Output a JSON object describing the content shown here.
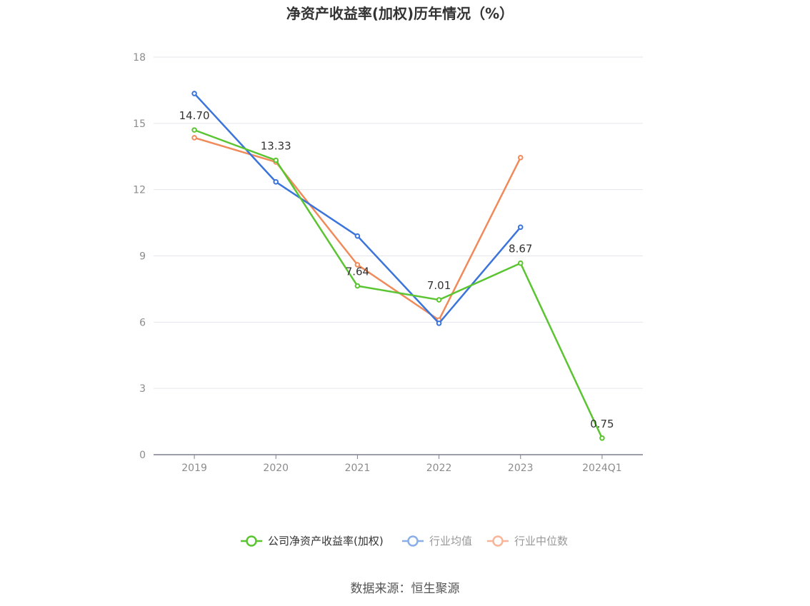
{
  "chart_data": {
    "type": "line",
    "title": "净资产收益率(加权)历年情况（%）",
    "categories": [
      "2019",
      "2020",
      "2021",
      "2022",
      "2023",
      "2024Q1"
    ],
    "ylim": [
      0,
      18
    ],
    "yticks": [
      0,
      3,
      6,
      9,
      12,
      15,
      18
    ],
    "grid": true,
    "legend_position": "bottom",
    "series": [
      {
        "name": "公司净资产收益率(加权)",
        "color": "#5ac531",
        "values": [
          14.7,
          13.33,
          7.64,
          7.01,
          8.67,
          0.75
        ],
        "labels": [
          "14.70",
          "13.33",
          "7.64",
          "7.01",
          "8.67",
          "0.75"
        ]
      },
      {
        "name": "行业均值",
        "color": "#3b74db",
        "values": [
          16.35,
          12.35,
          9.9,
          5.95,
          10.3,
          null
        ]
      },
      {
        "name": "行业中位数",
        "color": "#f08a5a",
        "values": [
          14.35,
          13.25,
          8.6,
          6.1,
          13.45,
          null
        ]
      }
    ],
    "legend_colors": [
      "#5ac531",
      "#8aaee8",
      "#f7b59a"
    ],
    "source": "数据来源：恒生聚源"
  }
}
